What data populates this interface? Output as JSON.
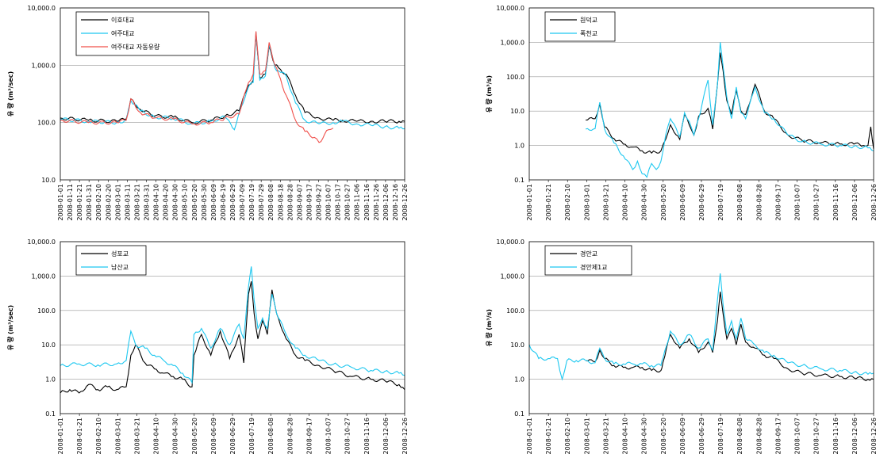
{
  "chart_data": [
    {
      "type": "line",
      "yscale": "log",
      "ylim": [
        10,
        10000
      ],
      "ylabel": "유 량 (m³/sec)",
      "ytick_labels": [
        "10,000.0",
        "1,000.0",
        "100.0",
        "10.0"
      ],
      "ytick_values": [
        10000,
        1000,
        100,
        10
      ],
      "xtick_labels": [
        "2008-01-01",
        "2008-01-11",
        "2008-01-21",
        "2008-01-31",
        "2008-02-10",
        "2008-02-20",
        "2008-03-01",
        "2008-03-11",
        "2008-03-21",
        "2008-03-31",
        "2008-04-10",
        "2008-04-20",
        "2008-04-30",
        "2008-05-10",
        "2008-05-20",
        "2008-05-30",
        "2008-06-09",
        "2008-06-19",
        "2008-06-29",
        "2008-07-09",
        "2008-07-19",
        "2008-07-29",
        "2008-08-08",
        "2008-08-18",
        "2008-08-28",
        "2008-09-07",
        "2008-09-17",
        "2008-09-27",
        "2008-10-07",
        "2008-10-17",
        "2008-10-27",
        "2008-11-06",
        "2008-11-16",
        "2008-11-26",
        "2008-12-06",
        "2008-12-16",
        "2008-12-26"
      ],
      "legend": "top-left",
      "series": [
        {
          "name": "이호대교",
          "color": "#000000",
          "x": [
            0,
            30,
            60,
            70,
            75,
            85,
            100,
            120,
            140,
            160,
            175,
            190,
            200,
            205,
            208,
            212,
            218,
            222,
            228,
            232,
            240,
            250,
            260,
            275,
            290,
            300,
            315,
            330,
            345,
            360,
            366
          ],
          "y": [
            120,
            110,
            105,
            115,
            260,
            170,
            130,
            125,
            100,
            110,
            130,
            160,
            450,
            550,
            3500,
            600,
            700,
            2200,
            1000,
            900,
            700,
            300,
            150,
            120,
            110,
            110,
            105,
            105,
            105,
            105,
            105
          ]
        },
        {
          "name": "여주대교",
          "color": "#1ec8f0",
          "x": [
            0,
            30,
            60,
            70,
            75,
            85,
            100,
            120,
            140,
            160,
            175,
            185,
            190,
            200,
            205,
            208,
            212,
            218,
            222,
            228,
            232,
            240,
            250,
            260,
            275,
            290,
            300,
            315,
            330,
            345,
            360,
            366
          ],
          "y": [
            115,
            105,
            100,
            110,
            240,
            160,
            125,
            120,
            95,
            105,
            125,
            75,
            150,
            420,
            500,
            3800,
            550,
            650,
            2300,
            900,
            800,
            650,
            220,
            110,
            95,
            100,
            105,
            95,
            90,
            85,
            80,
            78
          ]
        },
        {
          "name": "여주대교 자동유량",
          "color": "#f0504b",
          "x": [
            0,
            30,
            60,
            70,
            75,
            85,
            100,
            120,
            140,
            160,
            175,
            190,
            200,
            205,
            208,
            212,
            218,
            222,
            228,
            232,
            240,
            250,
            260,
            270,
            275,
            285,
            290
          ],
          "y": [
            110,
            100,
            100,
            110,
            260,
            150,
            120,
            115,
            95,
            100,
            120,
            140,
            500,
            700,
            3900,
            700,
            800,
            2500,
            1000,
            700,
            300,
            110,
            70,
            55,
            45,
            75,
            80
          ]
        }
      ]
    },
    {
      "type": "line",
      "yscale": "log",
      "ylim": [
        0.1,
        10000
      ],
      "ylabel": "유 량 (m³/s)",
      "ytick_labels": [
        "10,000.0",
        "1,000.0",
        "100.0",
        "10.0",
        "1.0",
        "0.1"
      ],
      "ytick_values": [
        10000,
        1000,
        100,
        10,
        1,
        0.1
      ],
      "xtick_labels": [
        "2008-01-01",
        "2008-01-21",
        "2008-02-10",
        "2008-03-01",
        "2008-03-21",
        "2008-04-10",
        "2008-04-30",
        "2008-05-20",
        "2008-06-09",
        "2008-06-29",
        "2008-07-19",
        "2008-08-08",
        "2008-08-28",
        "2008-09-17",
        "2008-10-07",
        "2008-10-27",
        "2008-11-16",
        "2008-12-06",
        "2008-12-26"
      ],
      "legend": "top-left",
      "series": [
        {
          "name": "원덕교",
          "color": "#000000",
          "x": [
            60,
            70,
            75,
            80,
            90,
            100,
            110,
            120,
            130,
            140,
            145,
            150,
            160,
            165,
            170,
            175,
            180,
            190,
            195,
            200,
            203,
            206,
            210,
            215,
            220,
            225,
            230,
            240,
            250,
            260,
            275,
            290,
            310,
            330,
            345,
            355,
            360,
            363,
            366
          ],
          "y": [
            5.5,
            6.0,
            16,
            3.5,
            1.6,
            1.1,
            0.9,
            0.7,
            0.6,
            0.7,
            1.5,
            4,
            1.5,
            8,
            4,
            2,
            7,
            12,
            3,
            60,
            500,
            150,
            20,
            8,
            40,
            10,
            8,
            60,
            10,
            6,
            2,
            1.4,
            1.2,
            1.1,
            1.1,
            1.0,
            1.0,
            3.5,
            0.8
          ]
        },
        {
          "name": "폭천교",
          "color": "#1ec8f0",
          "x": [
            60,
            70,
            75,
            80,
            90,
            100,
            110,
            115,
            120,
            125,
            130,
            135,
            140,
            145,
            150,
            160,
            165,
            170,
            175,
            180,
            190,
            195,
            200,
            203,
            206,
            210,
            215,
            220,
            225,
            230,
            240,
            250,
            260,
            275,
            290,
            310,
            330,
            345,
            360,
            366
          ],
          "y": [
            3.0,
            3.1,
            18,
            3.0,
            1.2,
            0.5,
            0.2,
            0.35,
            0.15,
            0.12,
            0.3,
            0.2,
            0.35,
            2,
            6,
            1.8,
            9,
            5,
            2,
            6,
            80,
            4,
            60,
            1000,
            200,
            25,
            6,
            50,
            9,
            6,
            50,
            9,
            6,
            2,
            1.3,
            1.1,
            1.0,
            0.95,
            0.85,
            0.7
          ]
        }
      ]
    },
    {
      "type": "line",
      "yscale": "log",
      "ylim": [
        0.1,
        10000
      ],
      "ylabel": "유 량 (m³/sec)",
      "ytick_labels": [
        "10,000.0",
        "1,000.0",
        "100.0",
        "10.0",
        "1.0",
        "0.1"
      ],
      "ytick_values": [
        10000,
        1000,
        100,
        10,
        1,
        0.1
      ],
      "xtick_labels": [
        "2008-01-01",
        "2008-01-21",
        "2008-02-10",
        "2008-03-01",
        "2008-03-21",
        "2008-04-10",
        "2008-04-30",
        "2008-05-20",
        "2008-06-09",
        "2008-06-29",
        "2008-07-19",
        "2008-08-08",
        "2008-08-28",
        "2008-09-17",
        "2008-10-07",
        "2008-10-27",
        "2008-11-16",
        "2008-12-06",
        "2008-12-26"
      ],
      "legend": "top-left",
      "series": [
        {
          "name": "성포교",
          "color": "#000000",
          "x": [
            0,
            10,
            20,
            30,
            40,
            50,
            60,
            70,
            75,
            80,
            90,
            100,
            110,
            120,
            130,
            140,
            142,
            150,
            160,
            170,
            180,
            190,
            195,
            200,
            203,
            206,
            210,
            215,
            220,
            225,
            230,
            240,
            250,
            260,
            275,
            290,
            310,
            330,
            345,
            360,
            366
          ],
          "y": [
            0.4,
            0.5,
            0.4,
            0.7,
            0.5,
            0.6,
            0.5,
            0.6,
            5,
            10,
            3,
            2,
            1.5,
            1.2,
            1.0,
            0.6,
            5,
            20,
            5,
            25,
            4,
            20,
            3,
            300,
            700,
            80,
            15,
            50,
            20,
            400,
            80,
            15,
            5,
            3.5,
            2.5,
            1.8,
            1.2,
            1.0,
            0.9,
            0.7,
            0.5
          ]
        },
        {
          "name": "남산교",
          "color": "#1ec8f0",
          "x": [
            0,
            20,
            40,
            60,
            70,
            75,
            80,
            90,
            100,
            110,
            120,
            130,
            140,
            142,
            150,
            160,
            170,
            180,
            190,
            195,
            200,
            203,
            206,
            210,
            215,
            220,
            225,
            230,
            240,
            250,
            260,
            275,
            290,
            310,
            330,
            345,
            360,
            366
          ],
          "y": [
            2.5,
            2.8,
            2.6,
            2.8,
            3.5,
            25,
            10,
            8,
            5,
            3.5,
            2.5,
            1.5,
            0.8,
            20,
            30,
            8,
            30,
            10,
            40,
            15,
            500,
            1900,
            200,
            30,
            60,
            30,
            300,
            80,
            20,
            8,
            5,
            3.5,
            2.7,
            2.2,
            1.8,
            1.7,
            1.5,
            1.3
          ]
        }
      ]
    },
    {
      "type": "line",
      "yscale": "log",
      "ylim": [
        0.1,
        10000
      ],
      "ylabel": "유 량 (m³/s)",
      "ytick_labels": [
        "10,000.0",
        "1,000.0",
        "100.0",
        "10.0",
        "1.0",
        "0.1"
      ],
      "ytick_values": [
        10000,
        1000,
        100,
        10,
        1,
        0.1
      ],
      "xtick_labels": [
        "2008-01-01",
        "2008-01-21",
        "2008-02-10",
        "2008-03-01",
        "2008-03-21",
        "2008-04-10",
        "2008-04-30",
        "2008-05-20",
        "2008-06-09",
        "2008-06-29",
        "2008-07-19",
        "2008-08-08",
        "2008-08-28",
        "2008-09-17",
        "2008-10-07",
        "2008-10-27",
        "2008-11-16",
        "2008-12-06",
        "2008-12-26"
      ],
      "legend": "top-left",
      "series": [
        {
          "name": "경안교",
          "color": "#000000",
          "x": [
            60,
            70,
            75,
            80,
            90,
            100,
            110,
            120,
            130,
            140,
            142,
            150,
            160,
            170,
            180,
            190,
            195,
            200,
            203,
            206,
            210,
            215,
            220,
            225,
            230,
            240,
            250,
            260,
            275,
            290,
            310,
            330,
            345,
            360,
            366
          ],
          "y": [
            3.5,
            3.2,
            7,
            4,
            2.5,
            2.2,
            2.2,
            2.2,
            1.8,
            1.8,
            3,
            20,
            8,
            15,
            6,
            12,
            6,
            50,
            350,
            80,
            15,
            30,
            10,
            40,
            12,
            8,
            5,
            4,
            2,
            1.5,
            1.3,
            1.2,
            1.1,
            1.0,
            1.0
          ]
        },
        {
          "name": "경안제1교",
          "color": "#1ec8f0",
          "x": [
            0,
            10,
            20,
            30,
            35,
            40,
            50,
            60,
            70,
            75,
            80,
            90,
            100,
            110,
            120,
            130,
            140,
            142,
            150,
            160,
            170,
            180,
            190,
            195,
            200,
            203,
            206,
            210,
            215,
            220,
            225,
            230,
            240,
            250,
            260,
            275,
            290,
            310,
            330,
            345,
            360,
            366
          ],
          "y": [
            10,
            4,
            4,
            4,
            1,
            3.5,
            3.5,
            3.5,
            3,
            8,
            4,
            2.8,
            2.8,
            2.8,
            2.8,
            2.5,
            2.5,
            4,
            25,
            10,
            20,
            8,
            15,
            7,
            200,
            1200,
            150,
            20,
            50,
            15,
            60,
            15,
            10,
            6,
            5,
            3,
            2.5,
            2,
            1.8,
            1.6,
            1.4,
            1.5
          ]
        }
      ]
    }
  ]
}
